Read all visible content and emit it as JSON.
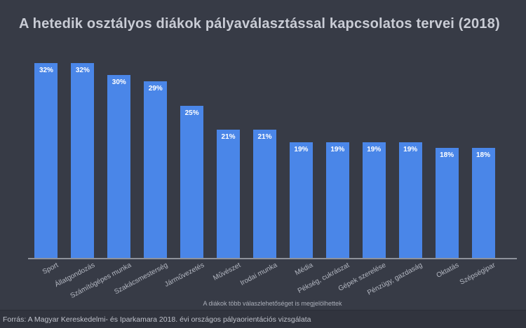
{
  "title": "A hetedik osztályos diákok pályaválasztással kapcsolatos tervei (2018)",
  "footnote": "A diákok több válaszlehetőséget is megjelölhettek",
  "source": "Forrás: A Magyar Kereskedelmi- és Iparkamara 2018. évi országos pályaorientációs vizsgálata",
  "colors": {
    "background": "#373B46",
    "footer_background": "#31343E",
    "bar": "#4A86E8",
    "title_text": "#C9CCD5",
    "axis_label_text": "#B4B8C2",
    "value_label_text": "#FFFFFF",
    "axis_line": "#8E929B"
  },
  "chart_data": {
    "type": "bar",
    "title": "A hetedik osztályos diákok pályaválasztással kapcsolatos tervei (2018)",
    "categories": [
      "Sport",
      "Állatgondozás",
      "Számítógépes munka",
      "Szakácsmesterség",
      "Járművezetés",
      "Művészet",
      "Irodai munka",
      "Média",
      "Pékség, cukrászat",
      "Gépek szerelése",
      "Pénzügy, gazdaság",
      "Oktatás",
      "Szépségipar"
    ],
    "values": [
      32,
      32,
      30,
      29,
      25,
      21,
      21,
      19,
      19,
      19,
      19,
      18,
      18
    ],
    "value_labels": [
      "32%",
      "32%",
      "30%",
      "29%",
      "25%",
      "21%",
      "21%",
      "19%",
      "19%",
      "19%",
      "19%",
      "18%",
      "18%"
    ],
    "unit": "%",
    "xlabel": "",
    "ylabel": "",
    "ylim": [
      0,
      36
    ],
    "grid": false,
    "legend": false,
    "bar_color": "#4A86E8",
    "label_rotation_deg": -28,
    "annotation": "A diákok több válaszlehetőséget is megjelölhettek",
    "source": "Forrás: A Magyar Kereskedelmi- és Iparkamara 2018. évi országos pályaorientációs vizsgálata"
  }
}
